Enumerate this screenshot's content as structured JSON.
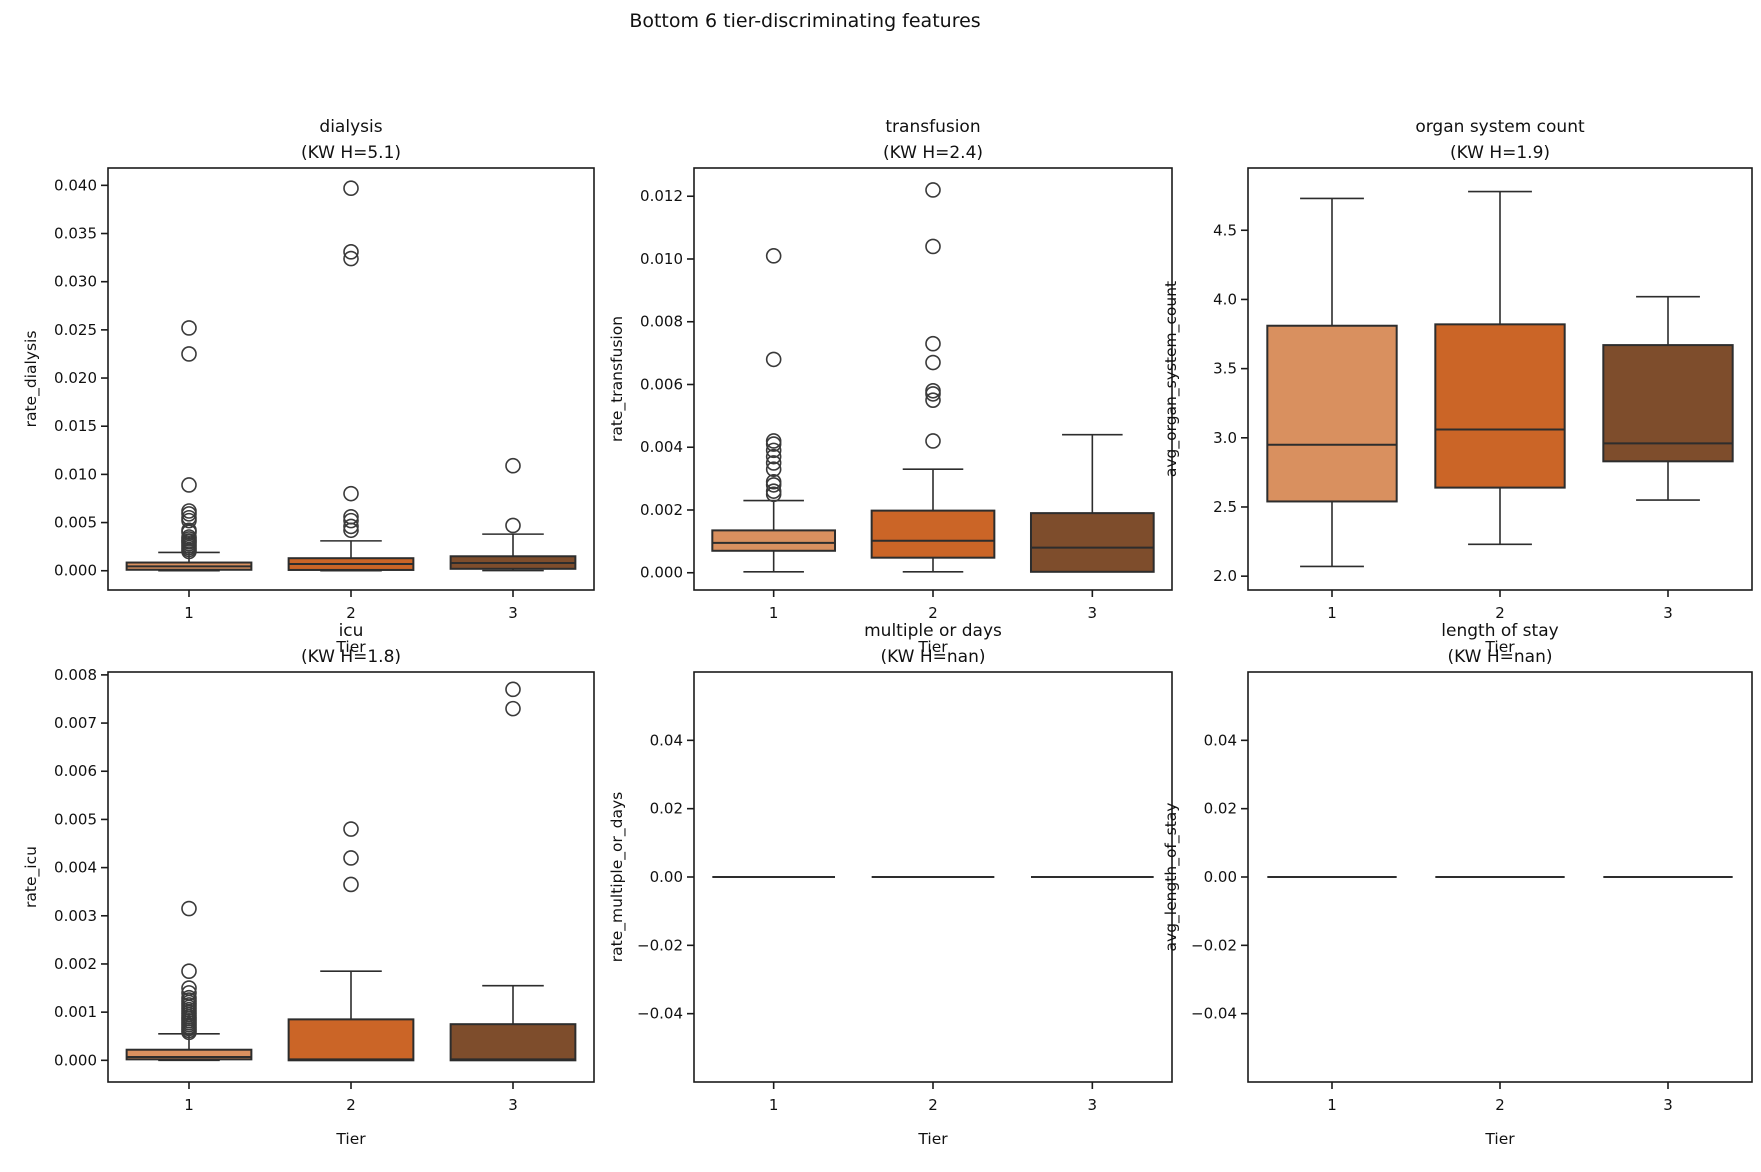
{
  "figure": {
    "suptitle": "Bottom 6 tier-discriminating features"
  },
  "chart_data": {
    "type": "bar",
    "plot_kind": "boxplot-grid",
    "rows": 2,
    "cols": 3,
    "categories": [
      "1",
      "2",
      "3"
    ],
    "xlabel": "Tier",
    "tier_colors": [
      "#D9905F",
      "#CB6527",
      "#7E4D2C"
    ],
    "line_color": "#2D2D2D",
    "spine_color": "#1a1a1a",
    "subplots": [
      {
        "slug": "dialysis",
        "title": "dialysis",
        "subtitle": "(KW H=5.1)",
        "ylabel": "rate_dialysis",
        "ylim": [
          -0.002,
          0.0418
        ],
        "ytick_values": [
          0.0,
          0.005,
          0.01,
          0.015,
          0.02,
          0.025,
          0.03,
          0.035,
          0.04
        ],
        "ytick_labels": [
          "0.000",
          "0.005",
          "0.010",
          "0.015",
          "0.020",
          "0.025",
          "0.030",
          "0.035",
          "0.040"
        ],
        "boxes": [
          {
            "tier": "1",
            "whislo": 0.0,
            "q1": 0.0001,
            "med": 0.00045,
            "q3": 0.00085,
            "whishi": 0.0019,
            "outliers": [
              0.002,
              0.0022,
              0.0024,
              0.0026,
              0.0028,
              0.003,
              0.0031,
              0.0033,
              0.0035,
              0.004,
              0.0042,
              0.0052,
              0.0055,
              0.0059,
              0.0062,
              0.0089,
              0.0225,
              0.0252
            ]
          },
          {
            "tier": "2",
            "whislo": 0.0,
            "q1": 8e-05,
            "med": 0.0007,
            "q3": 0.0013,
            "whishi": 0.0031,
            "outliers": [
              0.0042,
              0.0046,
              0.0052,
              0.0056,
              0.008,
              0.0324,
              0.0331,
              0.0397
            ]
          },
          {
            "tier": "3",
            "whislo": 2e-05,
            "q1": 0.0002,
            "med": 0.0008,
            "q3": 0.0015,
            "whishi": 0.0038,
            "outliers": [
              0.0047,
              0.0109
            ]
          }
        ]
      },
      {
        "slug": "transfusion",
        "title": "transfusion",
        "subtitle": "(KW H=2.4)",
        "ylabel": "rate_transfusion",
        "ylim": [
          -0.00055,
          0.0129
        ],
        "ytick_values": [
          0.0,
          0.002,
          0.004,
          0.006,
          0.008,
          0.01,
          0.012
        ],
        "ytick_labels": [
          "0.000",
          "0.002",
          "0.004",
          "0.006",
          "0.008",
          "0.010",
          "0.012"
        ],
        "boxes": [
          {
            "tier": "1",
            "whislo": 3e-05,
            "q1": 0.0007,
            "med": 0.00095,
            "q3": 0.00135,
            "whishi": 0.0023,
            "outliers": [
              0.0025,
              0.0026,
              0.0028,
              0.0029,
              0.0033,
              0.0035,
              0.0037,
              0.0039,
              0.0041,
              0.0042,
              0.0068,
              0.0101
            ]
          },
          {
            "tier": "2",
            "whislo": 3e-05,
            "q1": 0.00048,
            "med": 0.00102,
            "q3": 0.00198,
            "whishi": 0.0033,
            "outliers": [
              0.0042,
              0.0055,
              0.0057,
              0.0058,
              0.0067,
              0.0073,
              0.0104,
              0.0122
            ]
          },
          {
            "tier": "3",
            "whislo": 3e-05,
            "q1": 3e-05,
            "med": 0.0008,
            "q3": 0.0019,
            "whishi": 0.0044,
            "outliers": []
          }
        ]
      },
      {
        "slug": "organ-system-count",
        "title": "organ system count",
        "subtitle": "(KW H=1.9)",
        "ylabel": "avg_organ_system_count",
        "ylim": [
          1.9,
          4.95
        ],
        "ytick_values": [
          2.0,
          2.5,
          3.0,
          3.5,
          4.0,
          4.5
        ],
        "ytick_labels": [
          "2.0",
          "2.5",
          "3.0",
          "3.5",
          "4.0",
          "4.5"
        ],
        "boxes": [
          {
            "tier": "1",
            "whislo": 2.07,
            "q1": 2.54,
            "med": 2.95,
            "q3": 3.81,
            "whishi": 4.73,
            "outliers": []
          },
          {
            "tier": "2",
            "whislo": 2.23,
            "q1": 2.64,
            "med": 3.06,
            "q3": 3.82,
            "whishi": 4.78,
            "outliers": []
          },
          {
            "tier": "3",
            "whislo": 2.55,
            "q1": 2.83,
            "med": 2.96,
            "q3": 3.67,
            "whishi": 4.02,
            "outliers": []
          }
        ]
      },
      {
        "slug": "icu",
        "title": "icu",
        "subtitle": "(KW H=1.8)",
        "ylabel": "rate_icu",
        "ylim": [
          -0.00045,
          0.00806
        ],
        "ytick_values": [
          0.0,
          0.001,
          0.002,
          0.003,
          0.004,
          0.005,
          0.006,
          0.007,
          0.008
        ],
        "ytick_labels": [
          "0.000",
          "0.001",
          "0.002",
          "0.003",
          "0.004",
          "0.005",
          "0.006",
          "0.007",
          "0.008"
        ],
        "boxes": [
          {
            "tier": "1",
            "whislo": 0.0,
            "q1": 2e-05,
            "med": 7e-05,
            "q3": 0.00022,
            "whishi": 0.00055,
            "outliers": [
              0.00058,
              0.00062,
              0.00066,
              0.0007,
              0.00074,
              0.00078,
              0.00082,
              0.00086,
              0.0009,
              0.00095,
              0.001,
              0.00105,
              0.0011,
              0.00115,
              0.0012,
              0.00125,
              0.0013,
              0.0014,
              0.0015,
              0.00185,
              0.00315
            ]
          },
          {
            "tier": "2",
            "whislo": 0.0,
            "q1": 0.0,
            "med": 2e-05,
            "q3": 0.00085,
            "whishi": 0.00185,
            "outliers": [
              0.00365,
              0.0042,
              0.0048
            ]
          },
          {
            "tier": "3",
            "whislo": 0.0,
            "q1": 0.0,
            "med": 2e-05,
            "q3": 0.00075,
            "whishi": 0.00155,
            "outliers": [
              0.0073,
              0.0077
            ]
          }
        ]
      },
      {
        "slug": "multiple-or-days",
        "title": "multiple or days",
        "subtitle": "(KW H=nan)",
        "ylabel": "rate_multiple_or_days",
        "ylim": [
          -0.06,
          0.06
        ],
        "ytick_values": [
          -0.04,
          -0.02,
          0.0,
          0.02,
          0.04
        ],
        "ytick_labels": [
          "−0.04",
          "−0.02",
          "0.00",
          "0.02",
          "0.04"
        ],
        "boxes": [
          {
            "tier": "1",
            "whislo": 0.0,
            "q1": 0.0,
            "med": 0.0,
            "q3": 0.0,
            "whishi": 0.0,
            "outliers": []
          },
          {
            "tier": "2",
            "whislo": 0.0,
            "q1": 0.0,
            "med": 0.0,
            "q3": 0.0,
            "whishi": 0.0,
            "outliers": []
          },
          {
            "tier": "3",
            "whislo": 0.0,
            "q1": 0.0,
            "med": 0.0,
            "q3": 0.0,
            "whishi": 0.0,
            "outliers": []
          }
        ]
      },
      {
        "slug": "length-of-stay",
        "title": "length of stay",
        "subtitle": "(KW H=nan)",
        "ylabel": "avg_length_of_stay",
        "ylim": [
          -0.06,
          0.06
        ],
        "ytick_values": [
          -0.04,
          -0.02,
          0.0,
          0.02,
          0.04
        ],
        "ytick_labels": [
          "−0.04",
          "−0.02",
          "0.00",
          "0.02",
          "0.04"
        ],
        "boxes": [
          {
            "tier": "1",
            "whislo": 0.0,
            "q1": 0.0,
            "med": 0.0,
            "q3": 0.0,
            "whishi": 0.0,
            "outliers": []
          },
          {
            "tier": "2",
            "whislo": 0.0,
            "q1": 0.0,
            "med": 0.0,
            "q3": 0.0,
            "whishi": 0.0,
            "outliers": []
          },
          {
            "tier": "3",
            "whislo": 0.0,
            "q1": 0.0,
            "med": 0.0,
            "q3": 0.0,
            "whishi": 0.0,
            "outliers": []
          }
        ]
      }
    ]
  }
}
